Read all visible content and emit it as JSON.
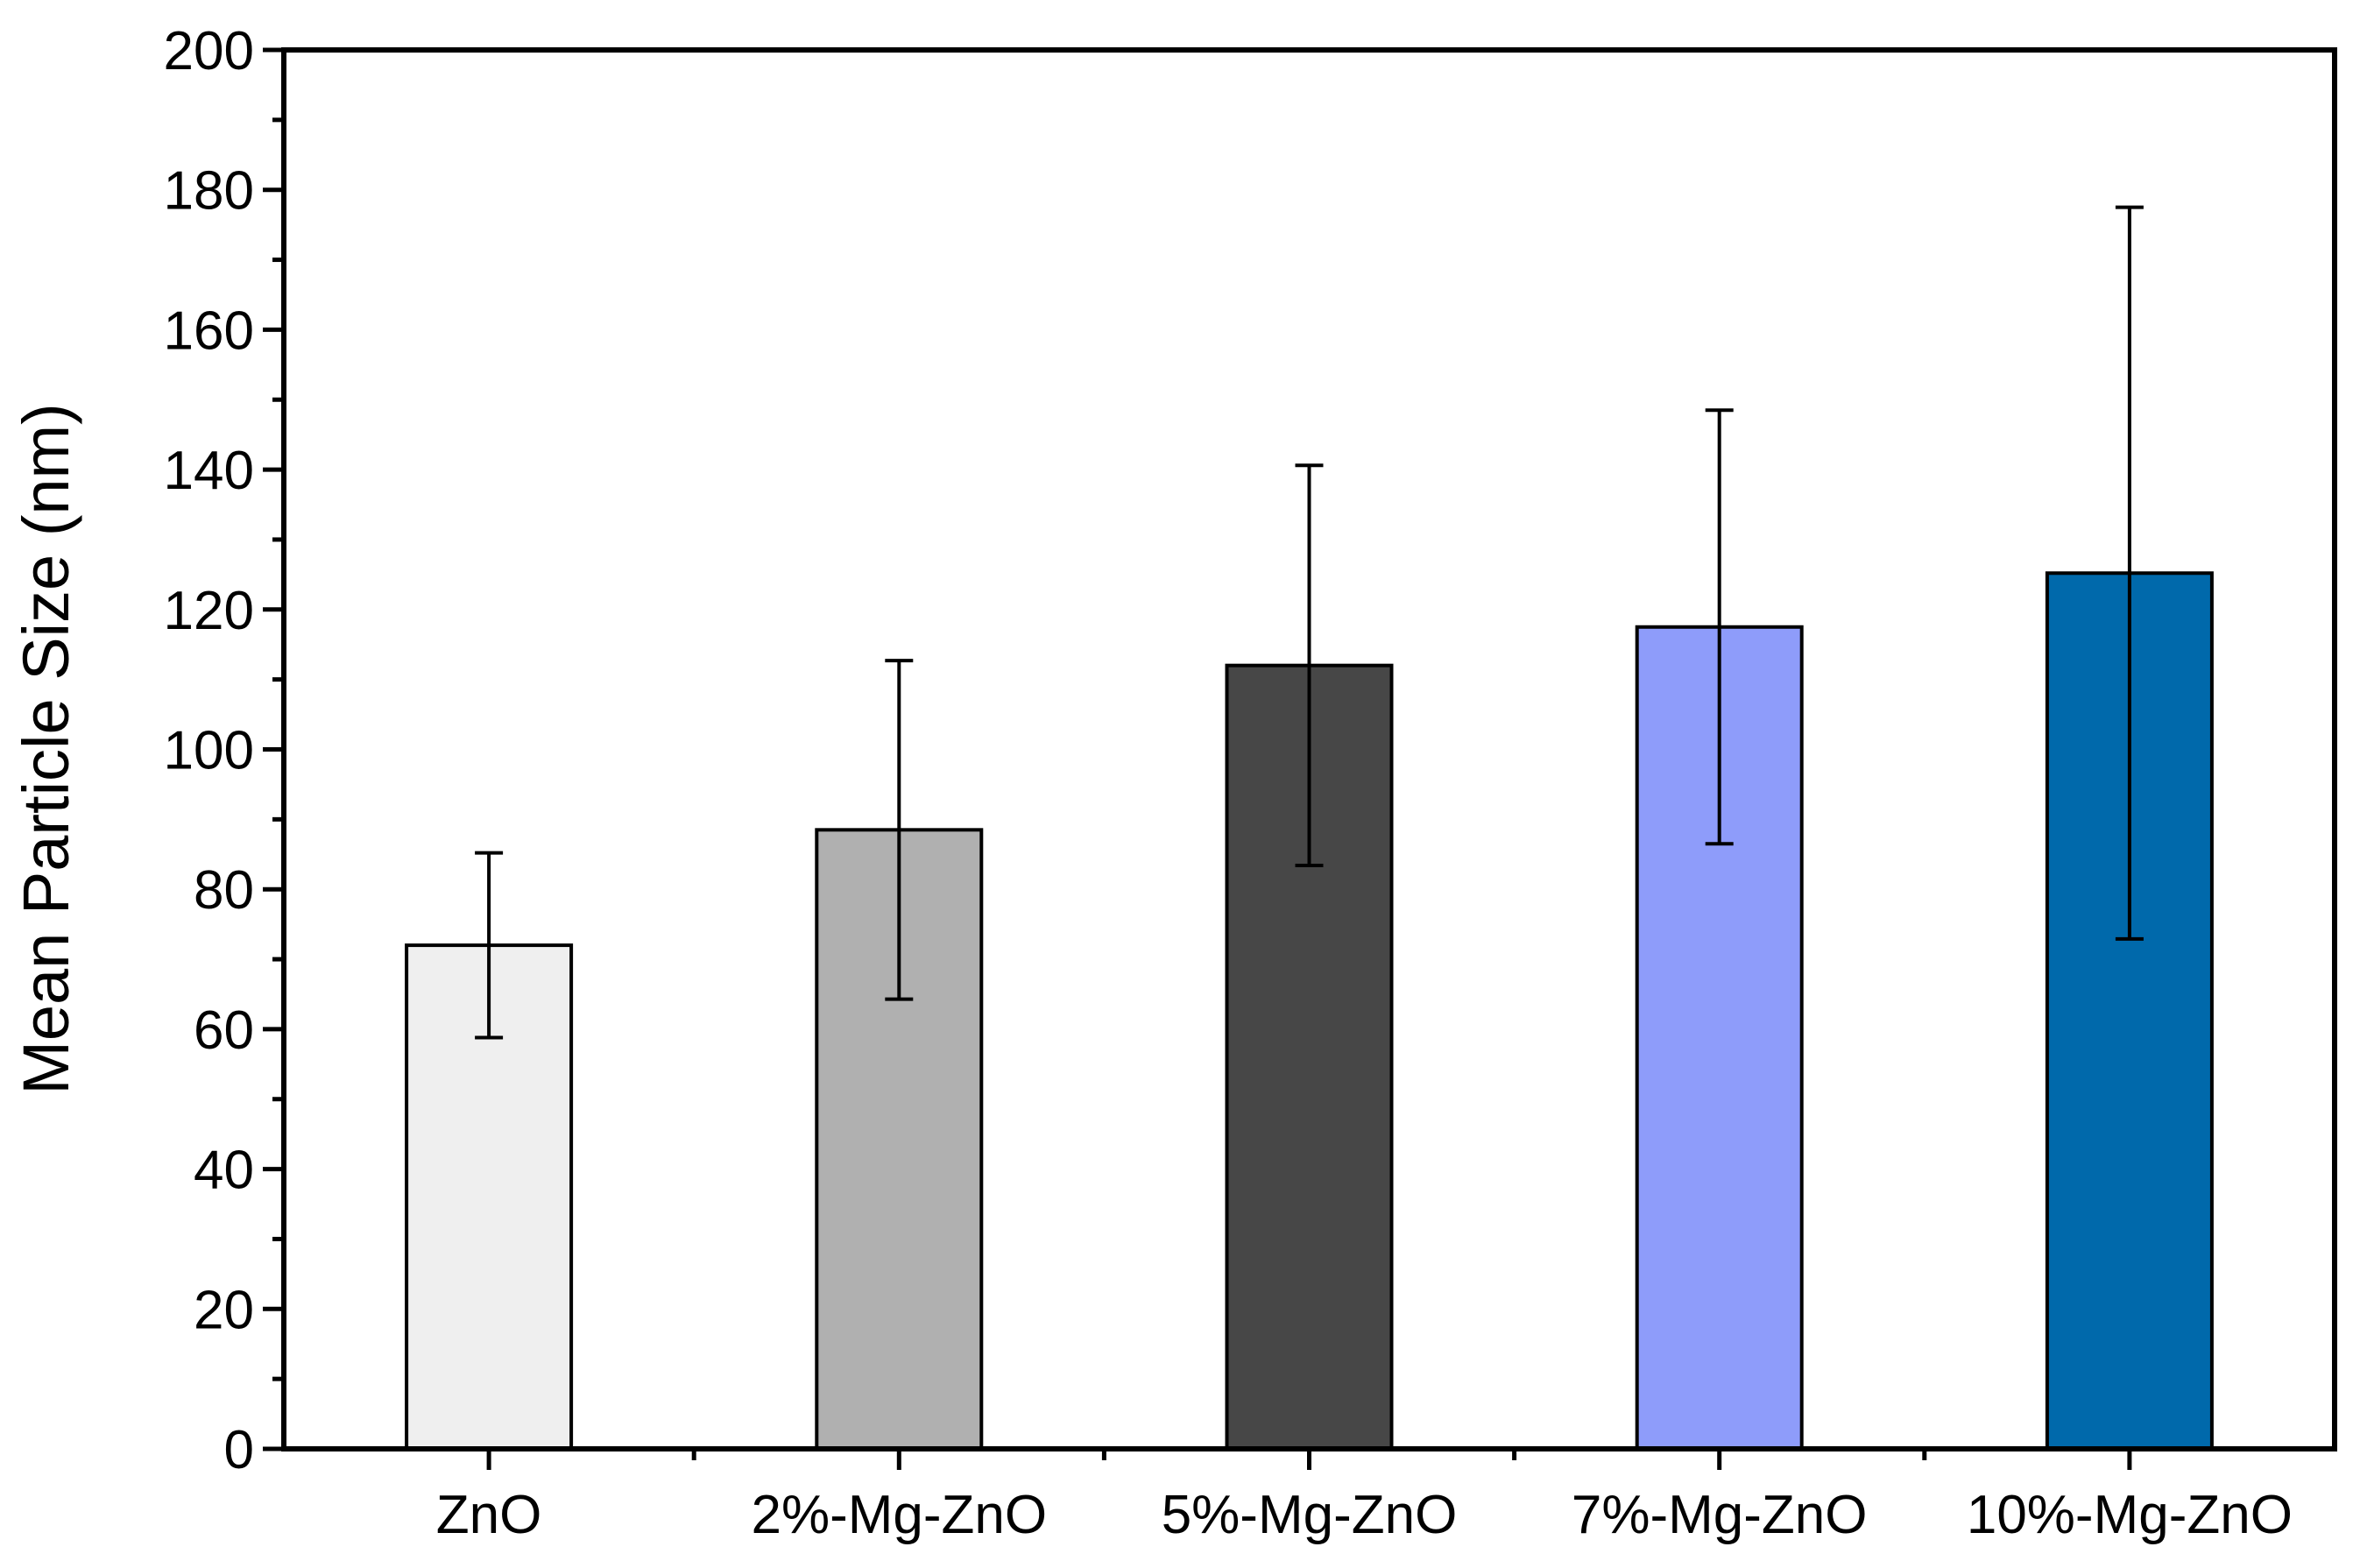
{
  "chart_data": {
    "type": "bar",
    "title": "",
    "xlabel": "",
    "ylabel": "Mean Particle Size (nm)",
    "ylim": [
      0,
      200
    ],
    "yticks": [
      "0",
      "20",
      "40",
      "60",
      "80",
      "100",
      "120",
      "140",
      "160",
      "180",
      "200"
    ],
    "categories": [
      "ZnO",
      "2%-Mg-ZnO",
      "5%-Mg-ZnO",
      "7%-Mg-ZnO",
      "10%-Mg-ZnO"
    ],
    "values": [
      72,
      88.5,
      112,
      117.5,
      125.2
    ],
    "errors": [
      13.2,
      24.2,
      28.6,
      31.0,
      52.3
    ],
    "colors": [
      "#efefef",
      "#b0b0b0",
      "#474747",
      "#8e9cfa",
      "#0069ab"
    ],
    "grid": false,
    "legend": "none"
  }
}
